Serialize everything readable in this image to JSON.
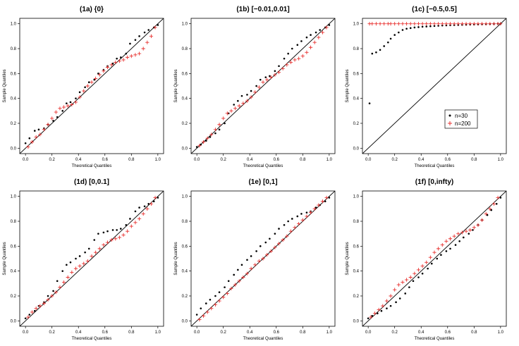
{
  "figure": {
    "background": "#ffffff",
    "series_colors": {
      "n=30": "#000000",
      "n=200": "#e8312f"
    },
    "series_markers": {
      "n=30": "dot",
      "n=200": "plus"
    }
  },
  "chart_data": [
    {
      "id": "1a",
      "type": "scatter",
      "title": "(1a) {0}",
      "xlabel": "Theoretical Quantiles",
      "ylabel": "Sample Quantiles",
      "xlim": [
        0,
        1
      ],
      "ylim": [
        0,
        1
      ],
      "xticks": [
        "0.0",
        "0.2",
        "0.4",
        "0.6",
        "0.8",
        "1.0"
      ],
      "yticks": [
        "0.0",
        "0.2",
        "0.4",
        "0.6",
        "0.8",
        "1.0"
      ],
      "reference_line": "y = x",
      "grid": false,
      "series": [
        {
          "name": "n=30",
          "marker": "dot",
          "color": "#000000",
          "x": [
            0.0,
            0.03,
            0.07,
            0.1,
            0.14,
            0.17,
            0.21,
            0.24,
            0.28,
            0.31,
            0.34,
            0.38,
            0.41,
            0.45,
            0.48,
            0.52,
            0.55,
            0.59,
            0.62,
            0.66,
            0.69,
            0.72,
            0.76,
            0.79,
            0.83,
            0.86,
            0.9,
            0.93,
            0.97,
            1.0
          ],
          "y": [
            0.04,
            0.08,
            0.14,
            0.15,
            0.16,
            0.19,
            0.22,
            0.25,
            0.3,
            0.36,
            0.37,
            0.4,
            0.45,
            0.49,
            0.53,
            0.55,
            0.6,
            0.63,
            0.66,
            0.68,
            0.72,
            0.73,
            0.76,
            0.84,
            0.87,
            0.9,
            0.93,
            0.95,
            0.97,
            0.99
          ]
        },
        {
          "name": "n=200",
          "marker": "plus",
          "color": "#e8312f",
          "x": [
            0.02,
            0.05,
            0.08,
            0.11,
            0.14,
            0.17,
            0.2,
            0.23,
            0.26,
            0.29,
            0.32,
            0.35,
            0.38,
            0.41,
            0.44,
            0.47,
            0.5,
            0.53,
            0.56,
            0.59,
            0.62,
            0.65,
            0.68,
            0.71,
            0.74,
            0.77,
            0.8,
            0.83,
            0.86,
            0.89,
            0.92,
            0.95,
            0.98
          ],
          "y": [
            0.01,
            0.05,
            0.09,
            0.11,
            0.15,
            0.19,
            0.24,
            0.29,
            0.32,
            0.33,
            0.34,
            0.35,
            0.37,
            0.41,
            0.46,
            0.5,
            0.53,
            0.56,
            0.59,
            0.62,
            0.65,
            0.67,
            0.69,
            0.7,
            0.71,
            0.73,
            0.74,
            0.75,
            0.76,
            0.8,
            0.85,
            0.9,
            0.97
          ]
        }
      ]
    },
    {
      "id": "1b",
      "type": "scatter",
      "title": "(1b) [−0.01,0.01]",
      "xlabel": "Theoretical Quantiles",
      "ylabel": "Sample Quantiles",
      "xlim": [
        0,
        1
      ],
      "ylim": [
        0,
        1
      ],
      "xticks": [
        "0.0",
        "0.2",
        "0.4",
        "0.6",
        "0.8",
        "1.0"
      ],
      "yticks": [
        "0.0",
        "0.2",
        "0.4",
        "0.6",
        "0.8",
        "1.0"
      ],
      "reference_line": "y = x",
      "grid": false,
      "series": [
        {
          "name": "n=30",
          "marker": "dot",
          "color": "#000000",
          "x": [
            0.0,
            0.03,
            0.07,
            0.1,
            0.14,
            0.17,
            0.21,
            0.24,
            0.28,
            0.31,
            0.34,
            0.38,
            0.41,
            0.45,
            0.48,
            0.52,
            0.55,
            0.59,
            0.62,
            0.66,
            0.69,
            0.72,
            0.76,
            0.79,
            0.83,
            0.86,
            0.9,
            0.93,
            0.97,
            1.0
          ],
          "y": [
            0.01,
            0.03,
            0.06,
            0.09,
            0.12,
            0.15,
            0.2,
            0.28,
            0.35,
            0.38,
            0.42,
            0.43,
            0.46,
            0.5,
            0.55,
            0.57,
            0.58,
            0.62,
            0.66,
            0.72,
            0.76,
            0.8,
            0.83,
            0.86,
            0.89,
            0.91,
            0.93,
            0.95,
            0.97,
            0.99
          ]
        },
        {
          "name": "n=200",
          "marker": "plus",
          "color": "#e8312f",
          "x": [
            0.02,
            0.05,
            0.08,
            0.11,
            0.14,
            0.17,
            0.2,
            0.23,
            0.26,
            0.29,
            0.32,
            0.35,
            0.38,
            0.41,
            0.44,
            0.47,
            0.5,
            0.53,
            0.56,
            0.59,
            0.62,
            0.65,
            0.68,
            0.71,
            0.74,
            0.77,
            0.8,
            0.83,
            0.86,
            0.89,
            0.92,
            0.95,
            0.98
          ],
          "y": [
            0.02,
            0.05,
            0.08,
            0.11,
            0.15,
            0.19,
            0.24,
            0.28,
            0.3,
            0.32,
            0.34,
            0.36,
            0.38,
            0.41,
            0.45,
            0.49,
            0.53,
            0.55,
            0.57,
            0.59,
            0.61,
            0.64,
            0.67,
            0.69,
            0.71,
            0.72,
            0.74,
            0.77,
            0.81,
            0.85,
            0.89,
            0.93,
            0.97
          ]
        }
      ]
    },
    {
      "id": "1c",
      "type": "scatter",
      "title": "(1c) [−0.5,0.5]",
      "xlabel": "Theoretical Quantiles",
      "ylabel": "Sample Quantiles",
      "xlim": [
        0,
        1
      ],
      "ylim": [
        0,
        1
      ],
      "xticks": [
        "0.0",
        "0.2",
        "0.4",
        "0.6",
        "0.8",
        "1.0"
      ],
      "yticks": [
        "0.0",
        "0.2",
        "0.4",
        "0.6",
        "0.8",
        "1.0"
      ],
      "reference_line": "y = x",
      "grid": false,
      "legend": {
        "placement": "right",
        "entries": [
          "n=30",
          "n=200"
        ]
      },
      "series": [
        {
          "name": "n=30",
          "marker": "dot",
          "color": "#000000",
          "x": [
            0.01,
            0.03,
            0.06,
            0.09,
            0.12,
            0.15,
            0.17,
            0.2,
            0.23,
            0.26,
            0.29,
            0.32,
            0.35,
            0.38,
            0.41,
            0.44,
            0.47,
            0.5,
            0.53,
            0.56,
            0.59,
            0.62,
            0.65,
            0.68,
            0.71,
            0.74,
            0.77,
            0.8,
            0.83,
            0.86,
            0.89,
            0.92,
            0.95,
            0.98,
            1.0
          ],
          "y": [
            0.36,
            0.76,
            0.77,
            0.79,
            0.82,
            0.85,
            0.88,
            0.91,
            0.93,
            0.95,
            0.96,
            0.965,
            0.97,
            0.973,
            0.976,
            0.978,
            0.98,
            0.982,
            0.984,
            0.986,
            0.987,
            0.988,
            0.989,
            0.99,
            0.991,
            0.992,
            0.993,
            0.994,
            0.995,
            0.996,
            0.997,
            0.998,
            0.999,
            1.0,
            1.0
          ]
        },
        {
          "name": "n=200",
          "marker": "plus",
          "color": "#e8312f",
          "x": [
            0.01,
            0.03,
            0.06,
            0.09,
            0.12,
            0.15,
            0.17,
            0.2,
            0.23,
            0.26,
            0.29,
            0.32,
            0.35,
            0.38,
            0.41,
            0.44,
            0.47,
            0.5,
            0.53,
            0.56,
            0.59,
            0.62,
            0.65,
            0.68,
            0.71,
            0.74,
            0.77,
            0.8,
            0.83,
            0.86,
            0.89,
            0.92,
            0.95,
            0.98,
            1.0
          ],
          "y": [
            1.0,
            1.0,
            1.0,
            1.0,
            1.0,
            1.0,
            1.0,
            1.0,
            1.0,
            1.0,
            1.0,
            1.0,
            1.0,
            1.0,
            1.0,
            1.0,
            1.0,
            1.0,
            1.0,
            1.0,
            1.0,
            1.0,
            1.0,
            1.0,
            1.0,
            1.0,
            1.0,
            1.0,
            1.0,
            1.0,
            1.0,
            1.0,
            1.0,
            1.0,
            1.0
          ]
        }
      ]
    },
    {
      "id": "1d",
      "type": "scatter",
      "title": "(1d) [0,0.1]",
      "xlabel": "Theoretical Quantiles",
      "ylabel": "Sample Quantiles",
      "xlim": [
        0,
        1
      ],
      "ylim": [
        0,
        1
      ],
      "xticks": [
        "0.0",
        "0.2",
        "0.4",
        "0.6",
        "0.8",
        "1.0"
      ],
      "yticks": [
        "0.0",
        "0.2",
        "0.4",
        "0.6",
        "0.8",
        "1.0"
      ],
      "reference_line": "y = x",
      "grid": false,
      "series": [
        {
          "name": "n=30",
          "marker": "dot",
          "color": "#000000",
          "x": [
            0.0,
            0.03,
            0.07,
            0.1,
            0.14,
            0.17,
            0.21,
            0.24,
            0.28,
            0.31,
            0.34,
            0.38,
            0.41,
            0.45,
            0.48,
            0.52,
            0.55,
            0.59,
            0.62,
            0.66,
            0.69,
            0.72,
            0.76,
            0.79,
            0.83,
            0.86,
            0.9,
            0.93,
            0.97,
            1.0
          ],
          "y": [
            0.02,
            0.05,
            0.08,
            0.12,
            0.15,
            0.2,
            0.24,
            0.32,
            0.4,
            0.45,
            0.47,
            0.5,
            0.52,
            0.55,
            0.58,
            0.65,
            0.7,
            0.71,
            0.72,
            0.73,
            0.73,
            0.74,
            0.77,
            0.82,
            0.88,
            0.91,
            0.92,
            0.94,
            0.96,
            0.99
          ]
        },
        {
          "name": "n=200",
          "marker": "plus",
          "color": "#e8312f",
          "x": [
            0.02,
            0.05,
            0.08,
            0.11,
            0.14,
            0.17,
            0.2,
            0.23,
            0.26,
            0.29,
            0.32,
            0.35,
            0.38,
            0.41,
            0.44,
            0.47,
            0.5,
            0.53,
            0.56,
            0.59,
            0.62,
            0.65,
            0.68,
            0.71,
            0.74,
            0.77,
            0.8,
            0.83,
            0.86,
            0.89,
            0.92,
            0.95,
            0.98
          ],
          "y": [
            0.03,
            0.07,
            0.1,
            0.12,
            0.14,
            0.17,
            0.2,
            0.23,
            0.27,
            0.31,
            0.35,
            0.39,
            0.42,
            0.44,
            0.46,
            0.48,
            0.52,
            0.55,
            0.58,
            0.61,
            0.63,
            0.65,
            0.66,
            0.67,
            0.69,
            0.72,
            0.76,
            0.79,
            0.82,
            0.86,
            0.9,
            0.94,
            0.99
          ]
        }
      ]
    },
    {
      "id": "1e",
      "type": "scatter",
      "title": "(1e) [0,1]",
      "xlabel": "Theoretical Quantiles",
      "ylabel": "Sample Quantiles",
      "xlim": [
        0,
        1
      ],
      "ylim": [
        0,
        1
      ],
      "xticks": [
        "0.0",
        "0.2",
        "0.4",
        "0.6",
        "0.8",
        "1.0"
      ],
      "yticks": [
        "0.0",
        "0.2",
        "0.4",
        "0.6",
        "0.8",
        "1.0"
      ],
      "reference_line": "y = x",
      "grid": false,
      "series": [
        {
          "name": "n=30",
          "marker": "dot",
          "color": "#000000",
          "x": [
            0.0,
            0.03,
            0.07,
            0.1,
            0.14,
            0.17,
            0.21,
            0.24,
            0.28,
            0.31,
            0.34,
            0.38,
            0.41,
            0.45,
            0.48,
            0.52,
            0.55,
            0.59,
            0.62,
            0.66,
            0.69,
            0.72,
            0.76,
            0.79,
            0.83,
            0.86,
            0.9,
            0.93,
            0.97,
            1.0
          ],
          "y": [
            0.05,
            0.1,
            0.14,
            0.17,
            0.2,
            0.23,
            0.27,
            0.32,
            0.37,
            0.41,
            0.45,
            0.49,
            0.52,
            0.56,
            0.6,
            0.63,
            0.66,
            0.7,
            0.74,
            0.77,
            0.8,
            0.82,
            0.84,
            0.86,
            0.87,
            0.88,
            0.91,
            0.93,
            0.96,
            0.99
          ]
        },
        {
          "name": "n=200",
          "marker": "plus",
          "color": "#e8312f",
          "x": [
            0.02,
            0.05,
            0.08,
            0.11,
            0.14,
            0.17,
            0.2,
            0.23,
            0.26,
            0.29,
            0.32,
            0.35,
            0.38,
            0.41,
            0.44,
            0.47,
            0.5,
            0.53,
            0.56,
            0.59,
            0.62,
            0.65,
            0.68,
            0.71,
            0.74,
            0.77,
            0.8,
            0.83,
            0.86,
            0.89,
            0.92,
            0.95,
            0.98
          ],
          "y": [
            0.01,
            0.04,
            0.07,
            0.1,
            0.13,
            0.16,
            0.19,
            0.22,
            0.26,
            0.29,
            0.32,
            0.35,
            0.38,
            0.42,
            0.45,
            0.48,
            0.5,
            0.53,
            0.56,
            0.59,
            0.62,
            0.65,
            0.68,
            0.72,
            0.75,
            0.78,
            0.81,
            0.84,
            0.87,
            0.9,
            0.93,
            0.96,
            0.99
          ]
        }
      ]
    },
    {
      "id": "1f",
      "type": "scatter",
      "title": "(1f) [0,infty)",
      "xlabel": "Theoretical Quantiles",
      "ylabel": "Sample Quantiles",
      "xlim": [
        0,
        1
      ],
      "ylim": [
        0,
        1
      ],
      "xticks": [
        "0.0",
        "0.2",
        "0.4",
        "0.6",
        "0.8",
        "1.0"
      ],
      "yticks": [
        "0.0",
        "0.2",
        "0.4",
        "0.6",
        "0.8",
        "1.0"
      ],
      "reference_line": "y = x",
      "grid": false,
      "series": [
        {
          "name": "n=30",
          "marker": "dot",
          "color": "#000000",
          "x": [
            0.0,
            0.03,
            0.07,
            0.1,
            0.14,
            0.17,
            0.21,
            0.24,
            0.28,
            0.31,
            0.34,
            0.38,
            0.41,
            0.45,
            0.48,
            0.52,
            0.55,
            0.59,
            0.62,
            0.66,
            0.69,
            0.72,
            0.76,
            0.79,
            0.83,
            0.86,
            0.9,
            0.93,
            0.97,
            1.0
          ],
          "y": [
            0.02,
            0.04,
            0.06,
            0.08,
            0.1,
            0.12,
            0.15,
            0.18,
            0.22,
            0.27,
            0.32,
            0.35,
            0.38,
            0.42,
            0.46,
            0.5,
            0.53,
            0.56,
            0.58,
            0.61,
            0.64,
            0.67,
            0.7,
            0.73,
            0.77,
            0.81,
            0.85,
            0.89,
            0.94,
            0.99
          ]
        },
        {
          "name": "n=200",
          "marker": "plus",
          "color": "#e8312f",
          "x": [
            0.02,
            0.05,
            0.08,
            0.11,
            0.14,
            0.17,
            0.2,
            0.23,
            0.26,
            0.29,
            0.32,
            0.35,
            0.38,
            0.41,
            0.44,
            0.47,
            0.5,
            0.53,
            0.56,
            0.59,
            0.62,
            0.65,
            0.68,
            0.71,
            0.74,
            0.77,
            0.8,
            0.83,
            0.86,
            0.89,
            0.92,
            0.95,
            0.98
          ],
          "y": [
            0.03,
            0.06,
            0.09,
            0.12,
            0.16,
            0.2,
            0.25,
            0.29,
            0.31,
            0.33,
            0.35,
            0.38,
            0.41,
            0.44,
            0.47,
            0.51,
            0.55,
            0.58,
            0.61,
            0.64,
            0.66,
            0.68,
            0.7,
            0.71,
            0.72,
            0.73,
            0.75,
            0.77,
            0.81,
            0.86,
            0.9,
            0.94,
            0.99
          ]
        }
      ]
    }
  ]
}
